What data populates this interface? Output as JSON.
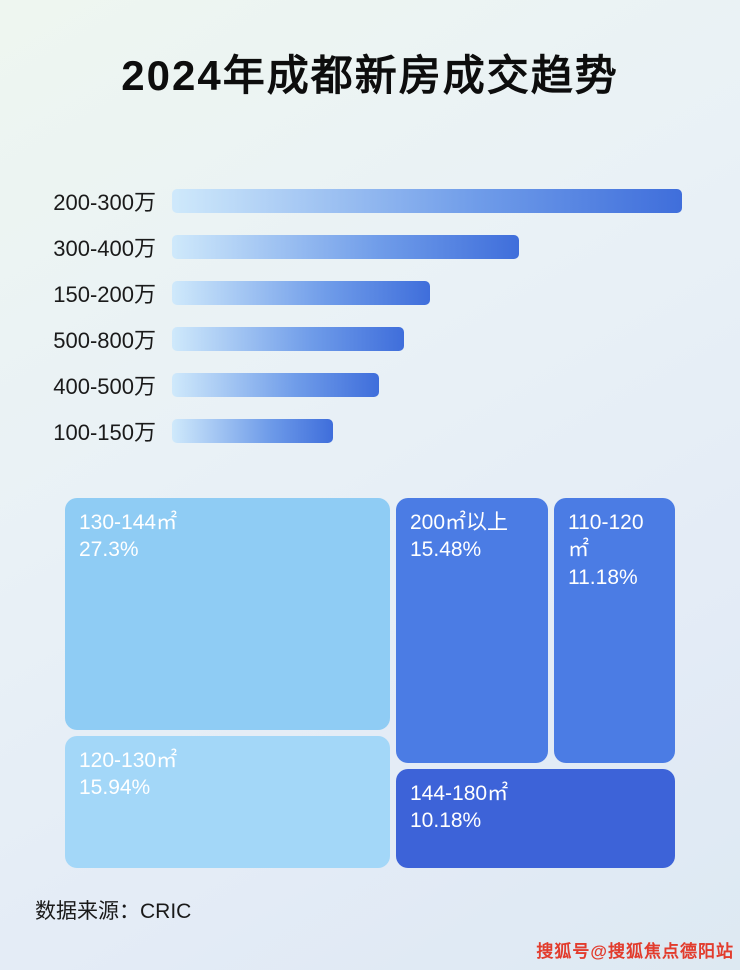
{
  "title": "2024年成都新房成交趋势",
  "chart_data": [
    {
      "type": "bar",
      "orientation": "horizontal",
      "title": "2024年成都新房成交趋势",
      "categories": [
        "200-300万",
        "300-400万",
        "150-200万",
        "500-800万",
        "400-500万",
        "100-150万"
      ],
      "values": [
        100,
        68,
        50.5,
        45.4,
        40.6,
        31.5
      ],
      "value_note": "bar lengths relative to longest bar (percent); no numeric data labels shown in image",
      "xlabel": "",
      "ylabel": "",
      "grid": false,
      "legend": "none",
      "bar_gradient": [
        "#cfe9fb",
        "#6f9ce9",
        "#3f6edb"
      ]
    },
    {
      "type": "treemap",
      "items": [
        {
          "label": "130-144㎡",
          "value_pct": 27.3,
          "value_text": "27.3%",
          "color": "#8fccf4"
        },
        {
          "label": "120-130㎡",
          "value_pct": 15.94,
          "value_text": "15.94%",
          "color": "#a3d7f8"
        },
        {
          "label": "200㎡以上",
          "value_pct": 15.48,
          "value_text": "15.48%",
          "color": "#4b7ce4"
        },
        {
          "label": "110-120㎡",
          "value_pct": 11.18,
          "value_text": "11.18%",
          "color": "#4b7ce4"
        },
        {
          "label": "144-180㎡",
          "value_pct": 10.18,
          "value_text": "10.18%",
          "color": "#3d63d8"
        }
      ]
    }
  ],
  "footer": {
    "source": "数据来源：CRIC"
  },
  "watermark": "搜狐号@搜狐焦点德阳站",
  "colors": {
    "title_text": "#0d0d0d",
    "bar_label_text": "#1a1a1a",
    "treemap_text": "#ffffff",
    "watermark_text": "#e23c2d",
    "background_top": "#eef6f0",
    "background_bottom": "#dde9f2"
  }
}
